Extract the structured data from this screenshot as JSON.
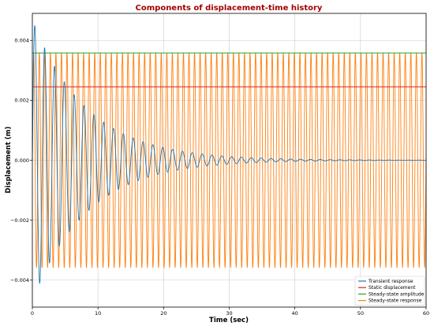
{
  "chart_data": {
    "type": "line",
    "title": "Components of displacement-time history",
    "title_color": "#a30000",
    "xlabel": "Time (sec)",
    "ylabel": "Displacement (m)",
    "xlim": [
      0,
      60
    ],
    "ylim": [
      -0.0049,
      0.0049
    ],
    "x_ticks": [
      0,
      10,
      20,
      30,
      40,
      50,
      60
    ],
    "x_tick_labels": [
      "0",
      "10",
      "20",
      "30",
      "40",
      "50",
      "60"
    ],
    "y_ticks": [
      -0.004,
      -0.002,
      0.0,
      0.002,
      0.004
    ],
    "y_tick_labels": [
      "−0.004",
      "−0.002",
      "0.000",
      "0.002",
      "0.004"
    ],
    "grid": true,
    "legend_position": "bottom-right",
    "series": [
      {
        "name": "Transient response",
        "color": "#1f77b4",
        "kind": "damped_sine",
        "amplitude": 0.0047,
        "decay_rate": 0.12,
        "period": 1.5,
        "sample_step": 0.02
      },
      {
        "name": "Static displacement",
        "color": "#d62728",
        "kind": "constant",
        "value": 0.00245
      },
      {
        "name": "Steady-state amplitude",
        "color": "#2ca02c",
        "kind": "constant",
        "value": 0.00358
      },
      {
        "name": "Steady-state response",
        "color": "#ff7f0e",
        "kind": "sine",
        "amplitude": 0.00358,
        "period": 0.845,
        "sample_step": 0.01
      }
    ]
  }
}
